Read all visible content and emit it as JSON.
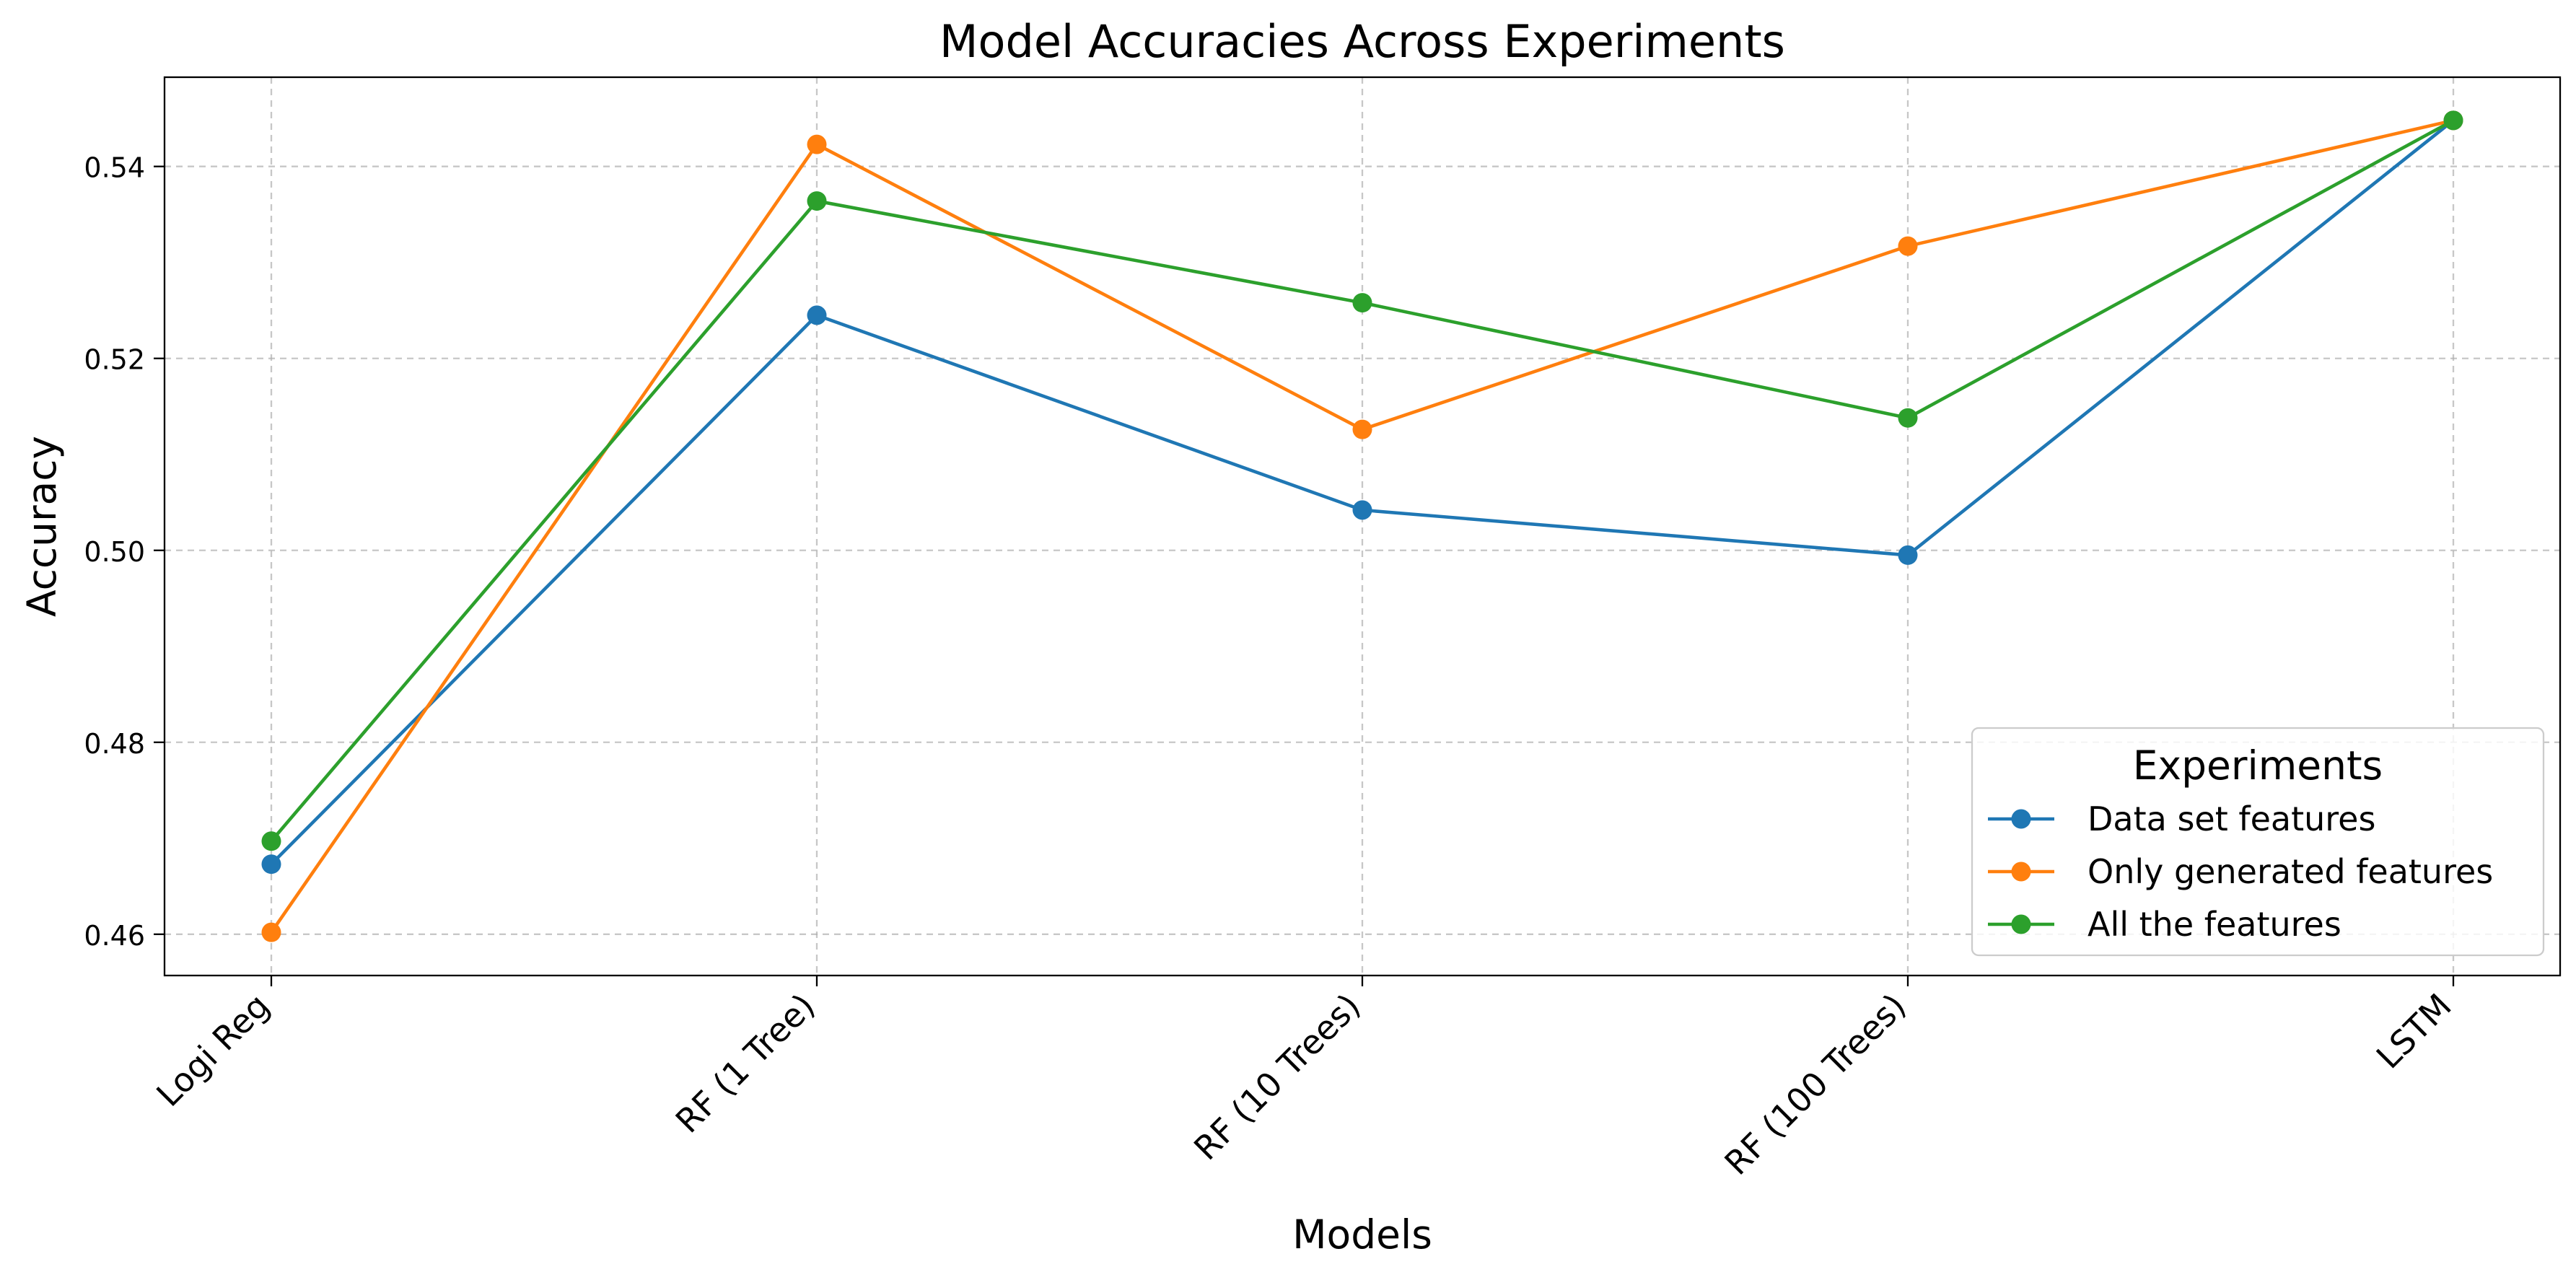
{
  "chart_data": {
    "type": "line",
    "title": "Model Accuracies Across Experiments",
    "xlabel": "Models",
    "ylabel": "Accuracy",
    "categories": [
      "Logi Reg",
      "RF (1 Tree)",
      "RF (10 Trees)",
      "RF (100 Trees)",
      "LSTM"
    ],
    "ylim": [
      0.4557,
      0.5493
    ],
    "yticks": [
      0.46,
      0.48,
      0.5,
      0.52,
      0.54
    ],
    "ytick_labels": [
      "0.46",
      "0.48",
      "0.50",
      "0.52",
      "0.54"
    ],
    "grid": true,
    "legend": {
      "title": "Experiments",
      "placement": "lower-right"
    },
    "series": [
      {
        "name": "Data set features",
        "color": "#1f77b4",
        "marker": "circle",
        "values": [
          0.4673,
          0.5245,
          0.5042,
          0.4995,
          0.5448
        ]
      },
      {
        "name": "Only generated features",
        "color": "#ff7f0e",
        "marker": "circle",
        "values": [
          0.4602,
          0.5423,
          0.5126,
          0.5317,
          0.5448
        ]
      },
      {
        "name": "All the features",
        "color": "#2ca02c",
        "marker": "circle",
        "values": [
          0.4697,
          0.5364,
          0.5258,
          0.5138,
          0.5448
        ]
      }
    ]
  }
}
